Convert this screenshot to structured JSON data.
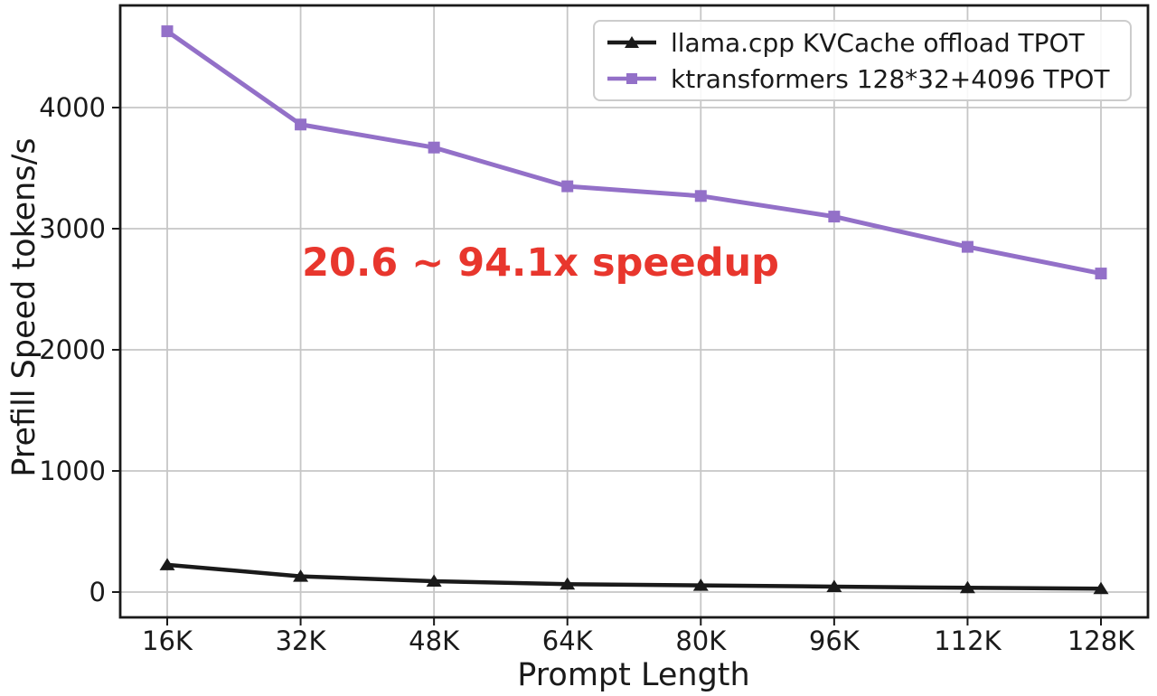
{
  "chart_data": {
    "type": "line",
    "title": "",
    "xlabel": "Prompt Length",
    "ylabel": "Prefill Speed tokens/s",
    "categories": [
      "16K",
      "32K",
      "48K",
      "64K",
      "80K",
      "96K",
      "112K",
      "128K"
    ],
    "y_ticks": [
      0,
      1000,
      2000,
      3000,
      4000
    ],
    "ylim": [
      -210,
      4845
    ],
    "grid": true,
    "grid_color": "#c6c6c6",
    "axis_color": "#1a1a1a",
    "legend_position": "upper right",
    "series": [
      {
        "name": "llama.cpp KVCache offload TPOT",
        "marker": "triangle",
        "color": "#1a1a1a",
        "values": [
          225,
          130,
          90,
          65,
          55,
          45,
          35,
          28
        ]
      },
      {
        "name": "ktransformers 128*32+4096 TPOT",
        "marker": "square",
        "color": "#9370c8",
        "values": [
          4630,
          3860,
          3670,
          3350,
          3270,
          3100,
          2850,
          2630
        ]
      }
    ],
    "annotation": {
      "text": "20.6 ~ 94.1x speedup",
      "color": "#e8362d"
    }
  }
}
